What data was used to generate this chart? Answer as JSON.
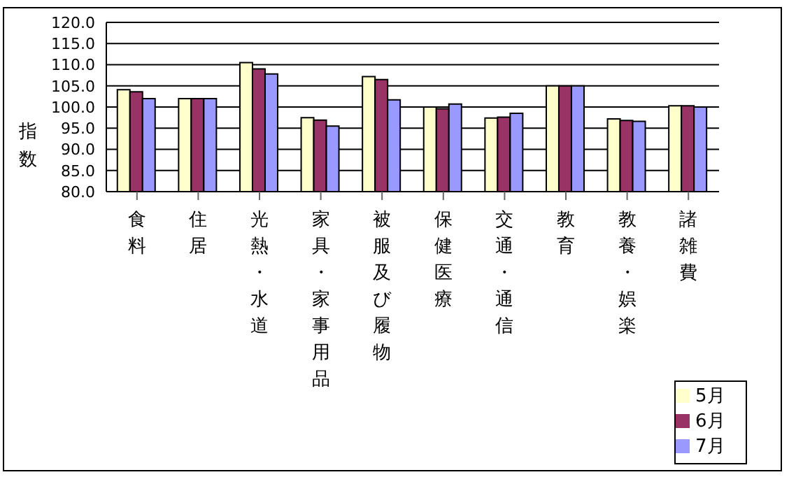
{
  "chart_data": {
    "type": "bar",
    "ylabel": "指数",
    "categories": [
      "食料",
      "住居",
      "光熱・水道",
      "家具・家事用品",
      "被服及び履物",
      "保健医療",
      "交通・通信",
      "教育",
      "教養・娯楽",
      "諸雑費"
    ],
    "series": [
      {
        "name": "5月",
        "color": "#ffffcc",
        "values": [
          104.1,
          102.0,
          110.5,
          97.5,
          107.2,
          100.0,
          97.4,
          105.0,
          97.2,
          100.3
        ]
      },
      {
        "name": "6月",
        "color": "#993366",
        "values": [
          103.6,
          102.0,
          109.0,
          96.9,
          106.5,
          99.6,
          97.6,
          105.0,
          96.8,
          100.3
        ]
      },
      {
        "name": "7月",
        "color": "#9999ff",
        "values": [
          102.0,
          102.0,
          107.8,
          95.5,
          101.7,
          100.7,
          98.5,
          105.0,
          96.6,
          100.0
        ]
      }
    ],
    "ylim": [
      80,
      120
    ],
    "yticks": [
      {
        "value": 80,
        "label": "80.0"
      },
      {
        "value": 85,
        "label": "85.0"
      },
      {
        "value": 90,
        "label": "90.0"
      },
      {
        "value": 95,
        "label": "95.0"
      },
      {
        "value": 100,
        "label": "100.0"
      },
      {
        "value": 105,
        "label": "105.0"
      },
      {
        "value": 110,
        "label": "110.0"
      },
      {
        "value": 115,
        "label": "115.0"
      },
      {
        "value": 120,
        "label": "120.0"
      }
    ],
    "grid": "y",
    "legend": "bottom right"
  }
}
